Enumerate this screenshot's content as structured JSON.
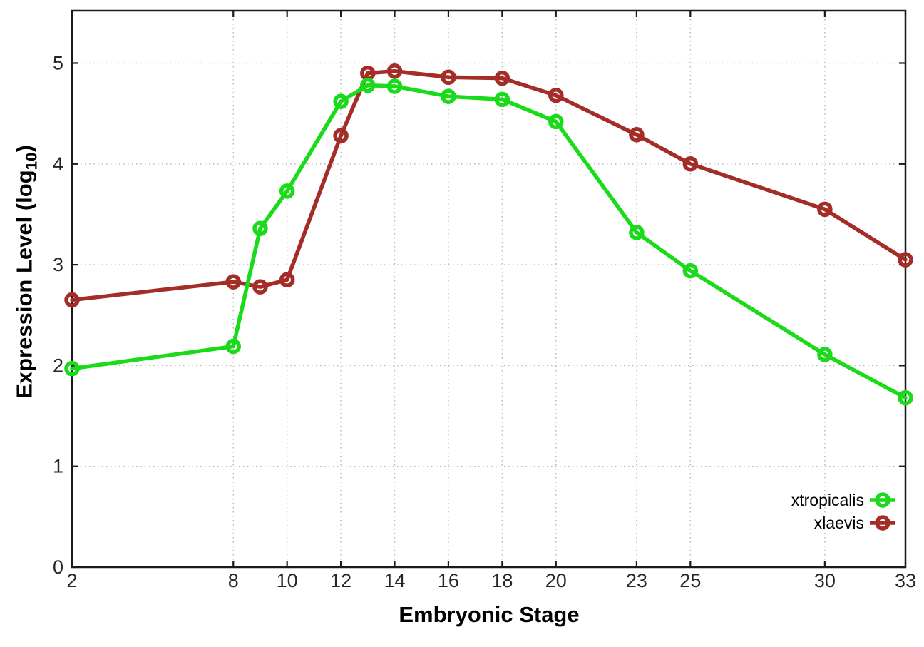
{
  "labels": {
    "ylabel_prefix": "Expression Level (log",
    "ylabel_sub": "10",
    "ylabel_suffix": ")"
  },
  "style": {
    "background": "#ffffff",
    "axis_color": "#1a1a1a",
    "grid_color": "#b5b5b5",
    "tick_label_color": "#262626",
    "series_green": "#1adb1a",
    "series_dark_red": "#a42e27"
  },
  "chart_data": {
    "type": "line",
    "x": [
      2,
      8,
      9,
      10,
      12,
      13,
      14,
      16,
      18,
      20,
      23,
      25,
      30,
      33
    ],
    "series": [
      {
        "name": "xtropicalis",
        "color": "#1adb1a",
        "marker": "open-circle",
        "values": [
          1.97,
          2.19,
          3.36,
          3.73,
          4.62,
          4.78,
          4.77,
          4.67,
          4.64,
          4.42,
          3.32,
          2.94,
          2.11,
          1.68
        ]
      },
      {
        "name": "xlaevis",
        "color": "#a42e27",
        "marker": "open-circle",
        "values": [
          2.65,
          2.83,
          2.78,
          2.85,
          4.28,
          4.9,
          4.92,
          4.86,
          4.85,
          4.68,
          4.29,
          4.0,
          3.55,
          3.05
        ]
      }
    ],
    "title": "",
    "xlabel": "Embryonic Stage",
    "ylabel": "Expression Level (log10)",
    "xticks": [
      2,
      8,
      10,
      12,
      14,
      16,
      18,
      20,
      23,
      25,
      30,
      33
    ],
    "yticks": [
      0,
      1,
      2,
      3,
      4,
      5
    ],
    "xlim": [
      2,
      33
    ],
    "ylim": [
      0,
      5.52
    ],
    "grid": true,
    "grid_style": "dotted",
    "legend_position": "inside-bottom-right",
    "legend_order": [
      "xtropicalis",
      "xlaevis"
    ]
  }
}
